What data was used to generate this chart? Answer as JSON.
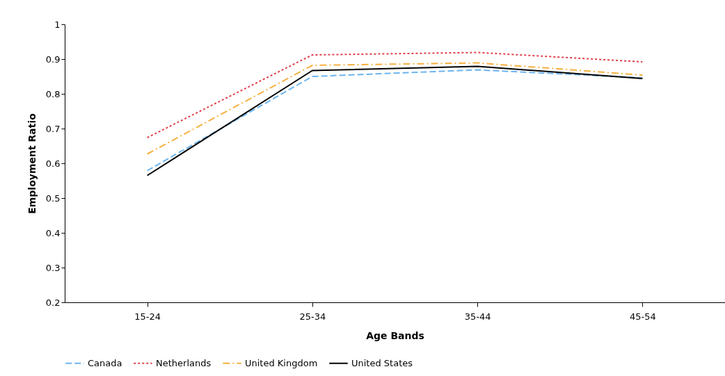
{
  "chart_data": {
    "type": "line",
    "xlabel": "Age Bands",
    "ylabel": "Employment Ratio",
    "categories": [
      "15-24",
      "25-34",
      "35-44",
      "45-54"
    ],
    "ylim": [
      0.2,
      1
    ],
    "yticks": [
      0.2,
      0.3,
      0.4,
      0.5,
      0.6,
      0.7,
      0.8,
      0.9,
      1
    ],
    "grid": false,
    "legend": "bottom",
    "marker": "none",
    "series": [
      {
        "name": "Canada",
        "color": "#6cb4ee",
        "line_style": "dashed",
        "values": [
          0.579,
          0.85,
          0.869,
          0.846
        ]
      },
      {
        "name": "Netherlands",
        "color": "#e0404a",
        "line_style": "dotted",
        "values": [
          0.674,
          0.912,
          0.919,
          0.892
        ]
      },
      {
        "name": "United Kingdom",
        "color": "#f7b040",
        "line_style": "dashdot",
        "values": [
          0.627,
          0.882,
          0.889,
          0.854
        ]
      },
      {
        "name": "United States",
        "color": "#000000",
        "line_style": "solid",
        "values": [
          0.565,
          0.867,
          0.879,
          0.844
        ]
      }
    ]
  }
}
